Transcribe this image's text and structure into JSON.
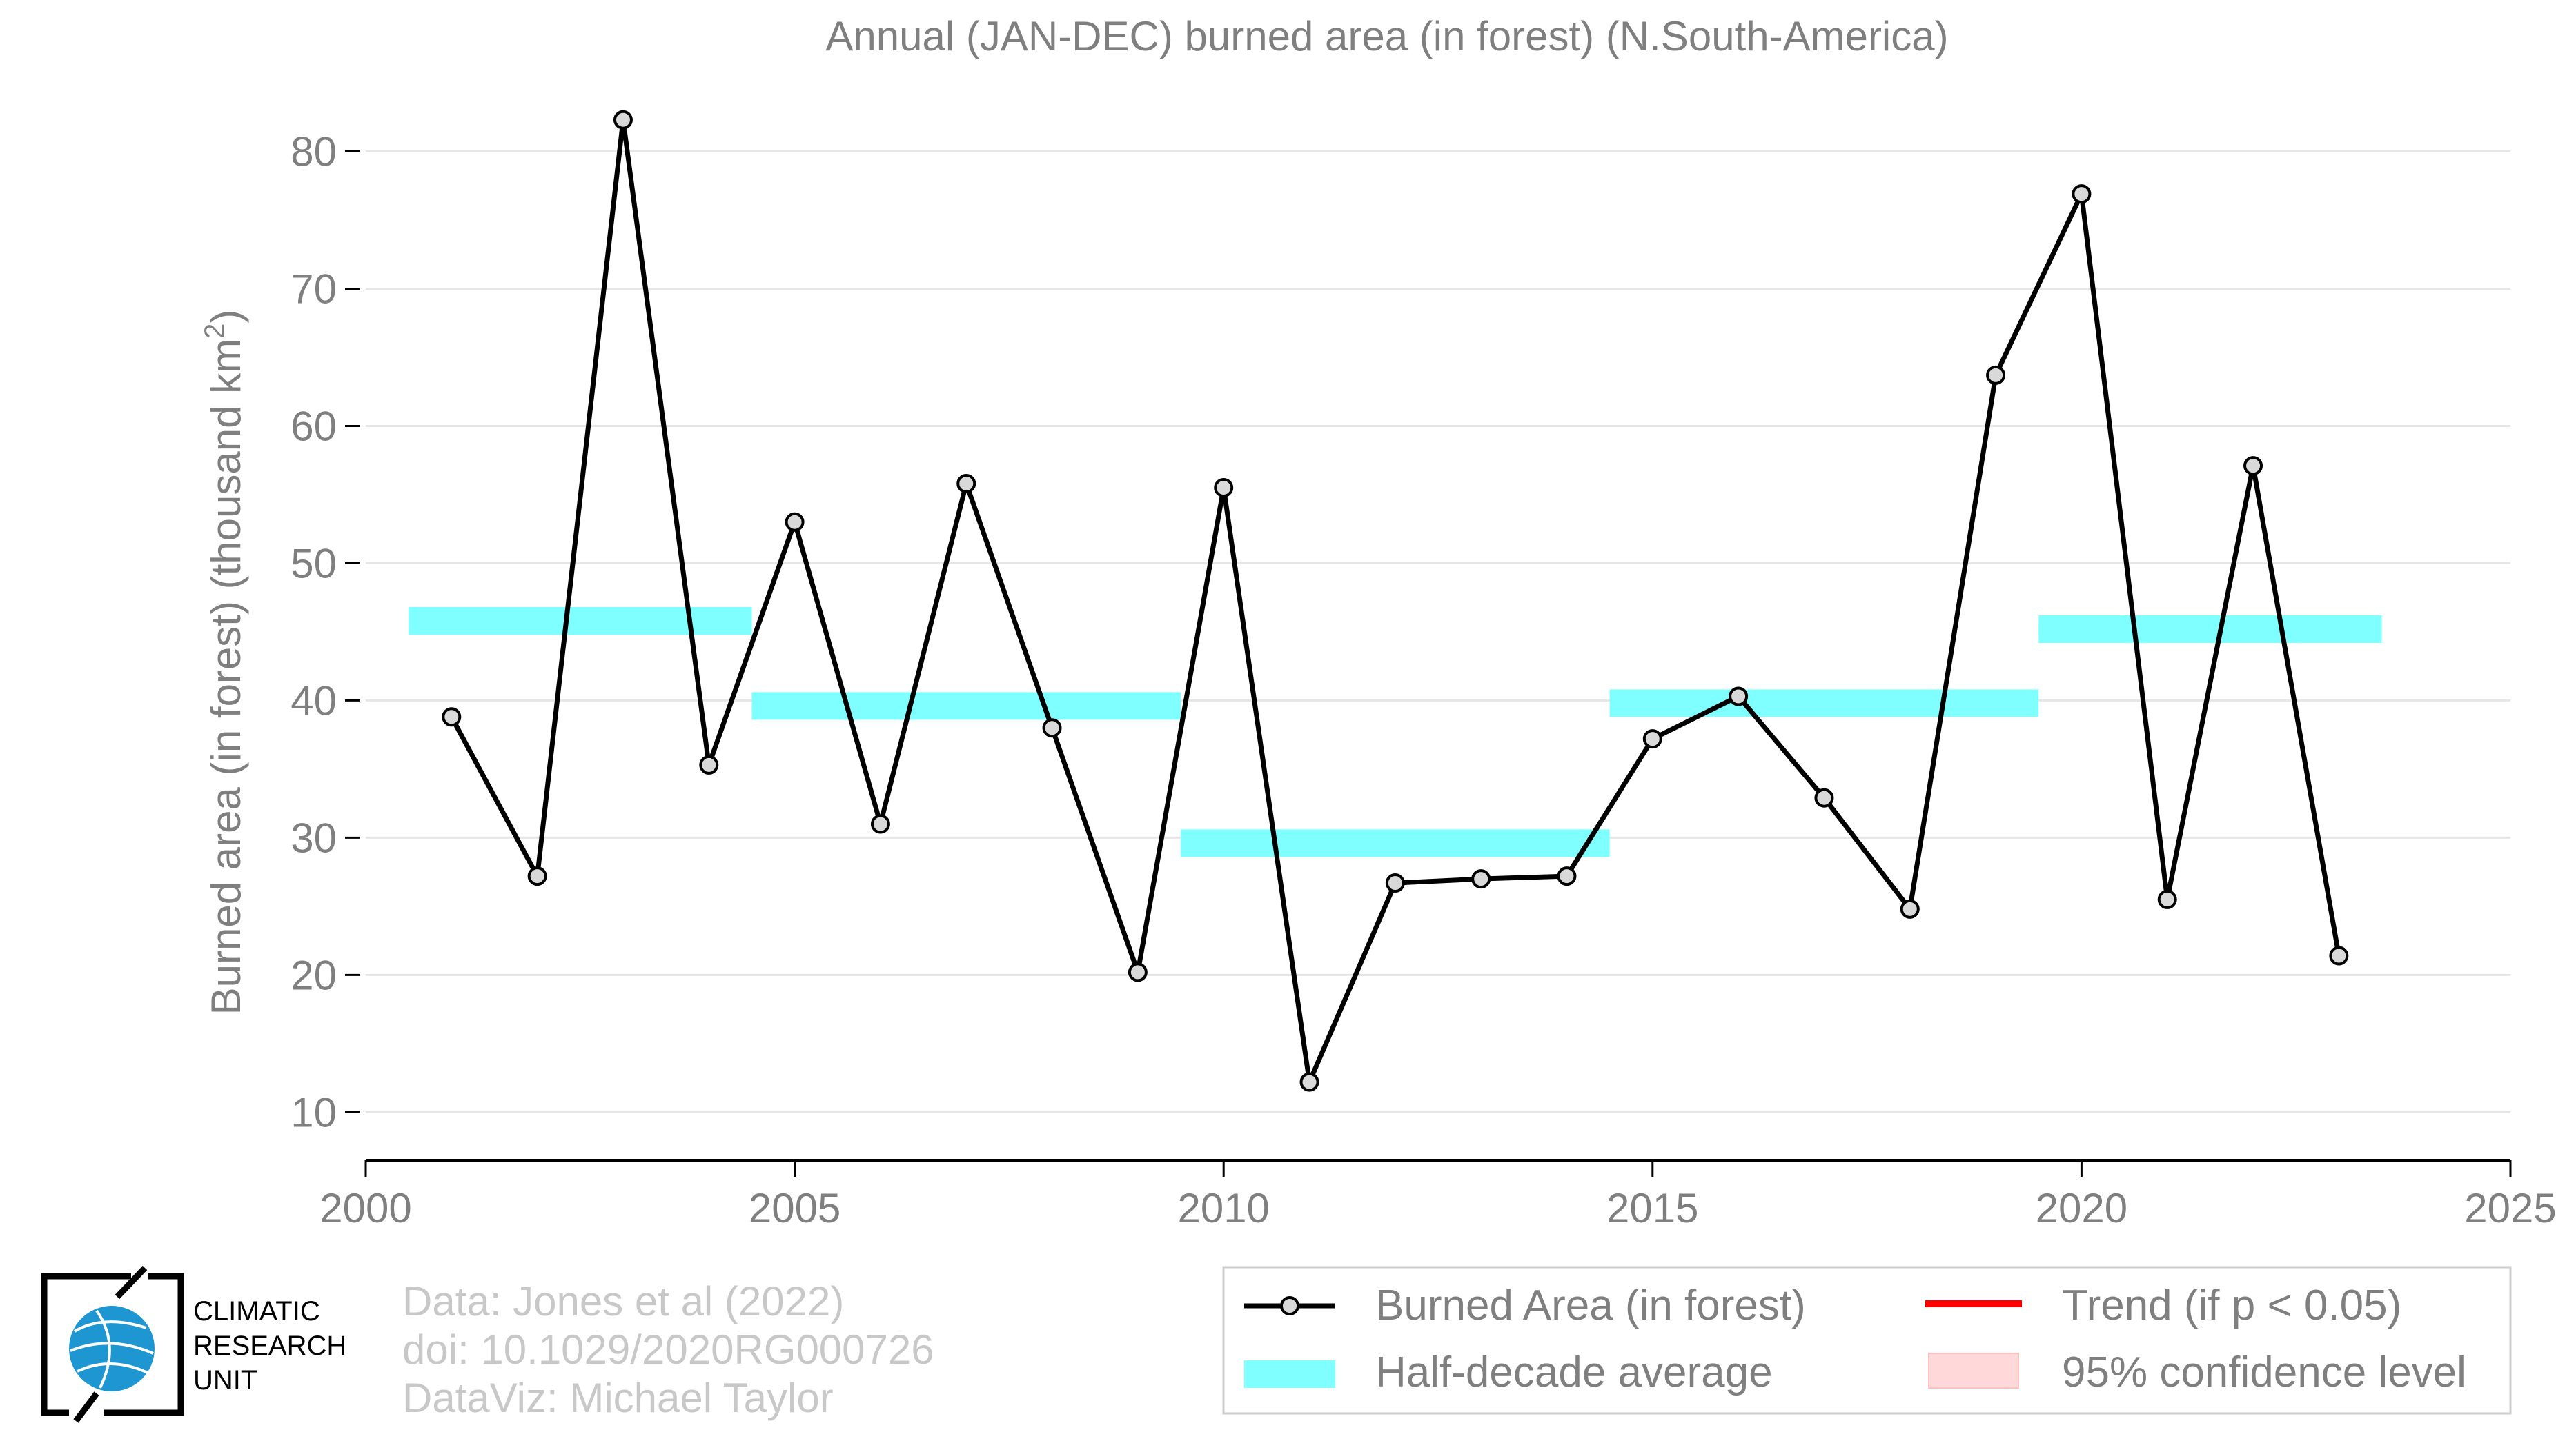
{
  "chart_data": {
    "type": "line",
    "title": "Annual (JAN-DEC) burned area (in forest) (N.South-America)",
    "xlabel": "",
    "ylabel": "Burned area (in forest) (thousand km",
    "ylabel_superscript": "2",
    "ylabel_close": ")",
    "xlim": [
      2000,
      2025
    ],
    "ylim": [
      6.5,
      85
    ],
    "xticks": [
      2000,
      2005,
      2010,
      2015,
      2020,
      2025
    ],
    "yticks": [
      10,
      20,
      30,
      40,
      50,
      60,
      70,
      80
    ],
    "grid": "horizontal",
    "legend_position": "bottom-right",
    "series": [
      {
        "name": "Burned Area (in forest)",
        "color": "#000000",
        "marker_fill": "#d9d9d9",
        "x": [
          2001,
          2002,
          2003,
          2004,
          2005,
          2006,
          2007,
          2008,
          2009,
          2010,
          2011,
          2012,
          2013,
          2014,
          2015,
          2016,
          2017,
          2018,
          2019,
          2020,
          2021,
          2022,
          2023
        ],
        "y": [
          38.8,
          27.2,
          82.3,
          35.3,
          53.0,
          31.0,
          55.8,
          38.0,
          20.2,
          55.5,
          12.2,
          26.7,
          27.0,
          27.2,
          37.2,
          40.3,
          32.9,
          24.8,
          63.7,
          76.9,
          25.5,
          57.1,
          21.4
        ]
      }
    ],
    "half_decade_average": {
      "name": "Half-decade average",
      "color": "#7fffff",
      "segments": [
        {
          "x_start": 2000.5,
          "x_end": 2004.5,
          "y": 45.8
        },
        {
          "x_start": 2004.5,
          "x_end": 2009.5,
          "y": 39.6
        },
        {
          "x_start": 2009.5,
          "x_end": 2014.5,
          "y": 29.6
        },
        {
          "x_start": 2014.5,
          "x_end": 2019.5,
          "y": 39.8
        },
        {
          "x_start": 2019.5,
          "x_end": 2023.5,
          "y": 45.2
        }
      ]
    },
    "legend": {
      "series_label": "Burned Area (in forest)",
      "average_label": "Half-decade average",
      "trend_label": "Trend (if p < 0.05)",
      "trend_color": "#ff0000",
      "confidence_label": "95% confidence level",
      "confidence_color": "#ffd9d9"
    }
  },
  "credits": {
    "line1": "Data: Jones et al (2022)",
    "line2": "doi: 10.1029/2020RG000726",
    "line3": "DataViz: Michael Taylor"
  },
  "logo": {
    "line1": "CLIMATIC",
    "line2": "RESEARCH",
    "line3": "UNIT",
    "globe_color": "#1e96d2"
  }
}
